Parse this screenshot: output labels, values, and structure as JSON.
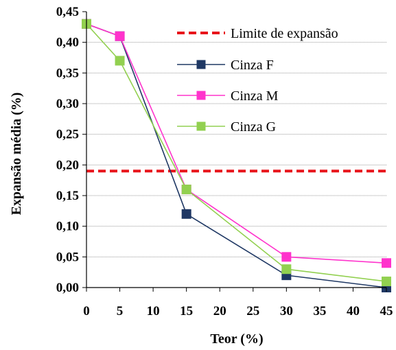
{
  "chart_data": {
    "type": "line",
    "xlabel": "Teor (%)",
    "ylabel": "Expansão média (%)",
    "xlim": [
      0,
      45
    ],
    "ylim": [
      0,
      0.45
    ],
    "x_ticks": [
      "0",
      "5",
      "10",
      "15",
      "20",
      "25",
      "30",
      "35",
      "40",
      "45"
    ],
    "y_ticks": [
      "0,00",
      "0,05",
      "0,10",
      "0,15",
      "0,20",
      "0,25",
      "0,30",
      "0,35",
      "0,40",
      "0,45"
    ],
    "grid": "horizontal dotted",
    "legend_position": "top-right",
    "limit_line": {
      "name": "Limite de expansão",
      "value": 0.19,
      "color": "#e8141b",
      "style": "dashed"
    },
    "series": [
      {
        "name": "Cinza F",
        "color": "#1f3864",
        "x": [
          0,
          5,
          15,
          30,
          45
        ],
        "values": [
          0.43,
          0.41,
          0.12,
          0.02,
          0.0
        ]
      },
      {
        "name": "Cinza M",
        "color": "#ff33cc",
        "x": [
          0,
          5,
          15,
          30,
          45
        ],
        "values": [
          0.43,
          0.41,
          0.16,
          0.05,
          0.04
        ]
      },
      {
        "name": "Cinza G",
        "color": "#92d050",
        "x": [
          0,
          5,
          15,
          30,
          45
        ],
        "values": [
          0.43,
          0.37,
          0.16,
          0.03,
          0.01
        ]
      }
    ]
  }
}
